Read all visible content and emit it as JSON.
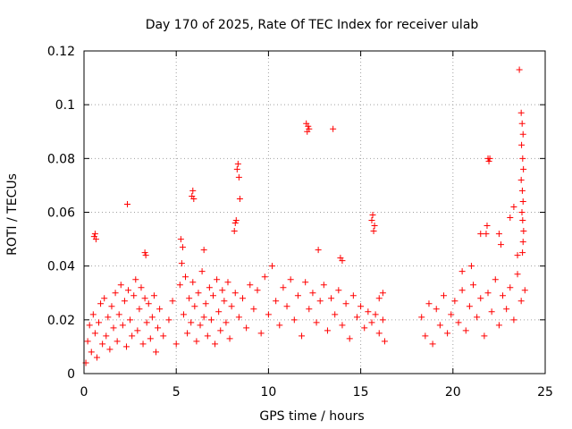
{
  "chart_data": {
    "type": "scatter",
    "title": "Day 170 of 2025, Rate Of TEC Index for receiver ulab",
    "xlabel": "GPS time / hours",
    "ylabel": "ROTI / TECUs",
    "xlim": [
      0,
      25
    ],
    "ylim": [
      0,
      0.12
    ],
    "xticks": [
      0,
      5,
      10,
      15,
      20,
      25
    ],
    "xtick_labels": [
      "0",
      "5",
      "10",
      "15",
      "20",
      "25"
    ],
    "yticks": [
      0,
      0.02,
      0.04,
      0.06,
      0.08,
      0.1,
      0.12
    ],
    "ytick_labels": [
      "0",
      "0.02",
      "0.04",
      "0.06",
      "0.08",
      "0.1",
      "0.12"
    ],
    "grid": true,
    "marker": "+",
    "marker_color": "#ff0000",
    "grid_color": "#a0a0a0",
    "series": [
      {
        "name": "ROTI",
        "points": [
          [
            0.1,
            0.004
          ],
          [
            0.2,
            0.012
          ],
          [
            0.3,
            0.018
          ],
          [
            0.4,
            0.008
          ],
          [
            0.5,
            0.022
          ],
          [
            0.6,
            0.015
          ],
          [
            0.7,
            0.006
          ],
          [
            0.8,
            0.019
          ],
          [
            0.9,
            0.026
          ],
          [
            1.0,
            0.011
          ],
          [
            1.1,
            0.028
          ],
          [
            1.2,
            0.014
          ],
          [
            1.3,
            0.021
          ],
          [
            1.4,
            0.009
          ],
          [
            1.5,
            0.025
          ],
          [
            1.6,
            0.017
          ],
          [
            1.7,
            0.03
          ],
          [
            1.8,
            0.012
          ],
          [
            1.9,
            0.022
          ],
          [
            2.0,
            0.033
          ],
          [
            2.1,
            0.018
          ],
          [
            2.2,
            0.027
          ],
          [
            2.3,
            0.01
          ],
          [
            2.4,
            0.031
          ],
          [
            2.5,
            0.02
          ],
          [
            2.6,
            0.014
          ],
          [
            2.7,
            0.029
          ],
          [
            2.8,
            0.035
          ],
          [
            2.9,
            0.016
          ],
          [
            3.0,
            0.024
          ],
          [
            3.1,
            0.032
          ],
          [
            3.2,
            0.011
          ],
          [
            3.3,
            0.028
          ],
          [
            3.4,
            0.019
          ],
          [
            3.5,
            0.026
          ],
          [
            3.6,
            0.013
          ],
          [
            3.7,
            0.021
          ],
          [
            3.8,
            0.029
          ],
          [
            3.9,
            0.008
          ],
          [
            4.0,
            0.017
          ],
          [
            4.1,
            0.024
          ],
          [
            4.3,
            0.014
          ],
          [
            4.6,
            0.02
          ],
          [
            4.8,
            0.027
          ],
          [
            5.0,
            0.011
          ],
          [
            5.2,
            0.033
          ],
          [
            5.3,
            0.041
          ],
          [
            5.4,
            0.022
          ],
          [
            5.5,
            0.036
          ],
          [
            5.6,
            0.015
          ],
          [
            5.7,
            0.028
          ],
          [
            5.8,
            0.019
          ],
          [
            5.9,
            0.034
          ],
          [
            6.0,
            0.025
          ],
          [
            6.1,
            0.012
          ],
          [
            6.2,
            0.03
          ],
          [
            6.3,
            0.018
          ],
          [
            6.4,
            0.038
          ],
          [
            6.5,
            0.021
          ],
          [
            6.6,
            0.026
          ],
          [
            6.7,
            0.014
          ],
          [
            6.8,
            0.032
          ],
          [
            6.9,
            0.02
          ],
          [
            7.0,
            0.029
          ],
          [
            7.1,
            0.011
          ],
          [
            7.2,
            0.035
          ],
          [
            7.3,
            0.023
          ],
          [
            7.4,
            0.016
          ],
          [
            7.5,
            0.031
          ],
          [
            7.6,
            0.027
          ],
          [
            7.7,
            0.019
          ],
          [
            7.8,
            0.034
          ],
          [
            7.9,
            0.013
          ],
          [
            8.0,
            0.025
          ],
          [
            8.2,
            0.03
          ],
          [
            8.4,
            0.021
          ],
          [
            8.6,
            0.028
          ],
          [
            8.8,
            0.017
          ],
          [
            9.0,
            0.033
          ],
          [
            9.2,
            0.024
          ],
          [
            9.4,
            0.031
          ],
          [
            9.6,
            0.015
          ],
          [
            9.8,
            0.036
          ],
          [
            10.0,
            0.022
          ],
          [
            10.2,
            0.04
          ],
          [
            10.4,
            0.027
          ],
          [
            10.6,
            0.018
          ],
          [
            10.8,
            0.032
          ],
          [
            11.0,
            0.025
          ],
          [
            11.2,
            0.035
          ],
          [
            11.4,
            0.02
          ],
          [
            11.6,
            0.029
          ],
          [
            11.8,
            0.014
          ],
          [
            12.0,
            0.034
          ],
          [
            12.2,
            0.024
          ],
          [
            12.4,
            0.03
          ],
          [
            12.6,
            0.019
          ],
          [
            12.8,
            0.027
          ],
          [
            13.0,
            0.033
          ],
          [
            13.2,
            0.016
          ],
          [
            13.4,
            0.028
          ],
          [
            13.6,
            0.022
          ],
          [
            13.8,
            0.031
          ],
          [
            14.0,
            0.018
          ],
          [
            14.2,
            0.026
          ],
          [
            14.4,
            0.013
          ],
          [
            14.6,
            0.029
          ],
          [
            14.8,
            0.021
          ],
          [
            15.0,
            0.025
          ],
          [
            15.2,
            0.017
          ],
          [
            15.4,
            0.023
          ],
          [
            15.6,
            0.019
          ],
          [
            15.8,
            0.022
          ],
          [
            16.0,
            0.015
          ],
          [
            16.2,
            0.02
          ],
          [
            16.3,
            0.012
          ],
          [
            18.3,
            0.021
          ],
          [
            18.5,
            0.014
          ],
          [
            18.7,
            0.026
          ],
          [
            18.9,
            0.011
          ],
          [
            19.1,
            0.024
          ],
          [
            19.3,
            0.018
          ],
          [
            19.5,
            0.029
          ],
          [
            19.7,
            0.015
          ],
          [
            19.9,
            0.022
          ],
          [
            20.1,
            0.027
          ],
          [
            20.3,
            0.019
          ],
          [
            20.5,
            0.031
          ],
          [
            20.7,
            0.016
          ],
          [
            20.9,
            0.025
          ],
          [
            21.1,
            0.033
          ],
          [
            21.3,
            0.021
          ],
          [
            21.5,
            0.028
          ],
          [
            21.7,
            0.014
          ],
          [
            21.9,
            0.03
          ],
          [
            22.1,
            0.023
          ],
          [
            22.3,
            0.035
          ],
          [
            22.5,
            0.018
          ],
          [
            22.7,
            0.029
          ],
          [
            22.9,
            0.024
          ],
          [
            23.1,
            0.032
          ],
          [
            23.3,
            0.02
          ],
          [
            23.5,
            0.037
          ],
          [
            23.7,
            0.027
          ],
          [
            23.9,
            0.031
          ],
          [
            0.55,
            0.051
          ],
          [
            0.6,
            0.052
          ],
          [
            0.65,
            0.05
          ],
          [
            2.35,
            0.063
          ],
          [
            3.3,
            0.045
          ],
          [
            3.35,
            0.044
          ],
          [
            5.25,
            0.05
          ],
          [
            5.35,
            0.047
          ],
          [
            5.85,
            0.066
          ],
          [
            5.9,
            0.068
          ],
          [
            5.95,
            0.065
          ],
          [
            6.5,
            0.046
          ],
          [
            8.2,
            0.056
          ],
          [
            8.25,
            0.057
          ],
          [
            8.15,
            0.053
          ],
          [
            8.3,
            0.076
          ],
          [
            8.35,
            0.078
          ],
          [
            8.4,
            0.073
          ],
          [
            8.45,
            0.065
          ],
          [
            12.1,
            0.09
          ],
          [
            12.15,
            0.092
          ],
          [
            12.2,
            0.091
          ],
          [
            12.05,
            0.093
          ],
          [
            13.5,
            0.091
          ],
          [
            12.7,
            0.046
          ],
          [
            13.9,
            0.043
          ],
          [
            14.0,
            0.042
          ],
          [
            15.6,
            0.057
          ],
          [
            15.65,
            0.059
          ],
          [
            15.7,
            0.053
          ],
          [
            15.75,
            0.055
          ],
          [
            16.0,
            0.028
          ],
          [
            16.2,
            0.03
          ],
          [
            20.5,
            0.038
          ],
          [
            21.0,
            0.04
          ],
          [
            21.5,
            0.052
          ],
          [
            21.9,
            0.08
          ],
          [
            22.0,
            0.08
          ],
          [
            21.95,
            0.079
          ],
          [
            21.85,
            0.055
          ],
          [
            21.8,
            0.052
          ],
          [
            22.5,
            0.052
          ],
          [
            22.6,
            0.048
          ],
          [
            23.1,
            0.058
          ],
          [
            23.3,
            0.062
          ],
          [
            23.5,
            0.044
          ],
          [
            23.6,
            0.113
          ],
          [
            23.7,
            0.097
          ],
          [
            23.75,
            0.093
          ],
          [
            23.8,
            0.089
          ],
          [
            23.72,
            0.085
          ],
          [
            23.78,
            0.08
          ],
          [
            23.82,
            0.076
          ],
          [
            23.7,
            0.072
          ],
          [
            23.76,
            0.068
          ],
          [
            23.8,
            0.064
          ],
          [
            23.74,
            0.06
          ],
          [
            23.78,
            0.057
          ],
          [
            23.83,
            0.053
          ],
          [
            23.8,
            0.049
          ],
          [
            23.77,
            0.045
          ]
        ]
      }
    ]
  }
}
